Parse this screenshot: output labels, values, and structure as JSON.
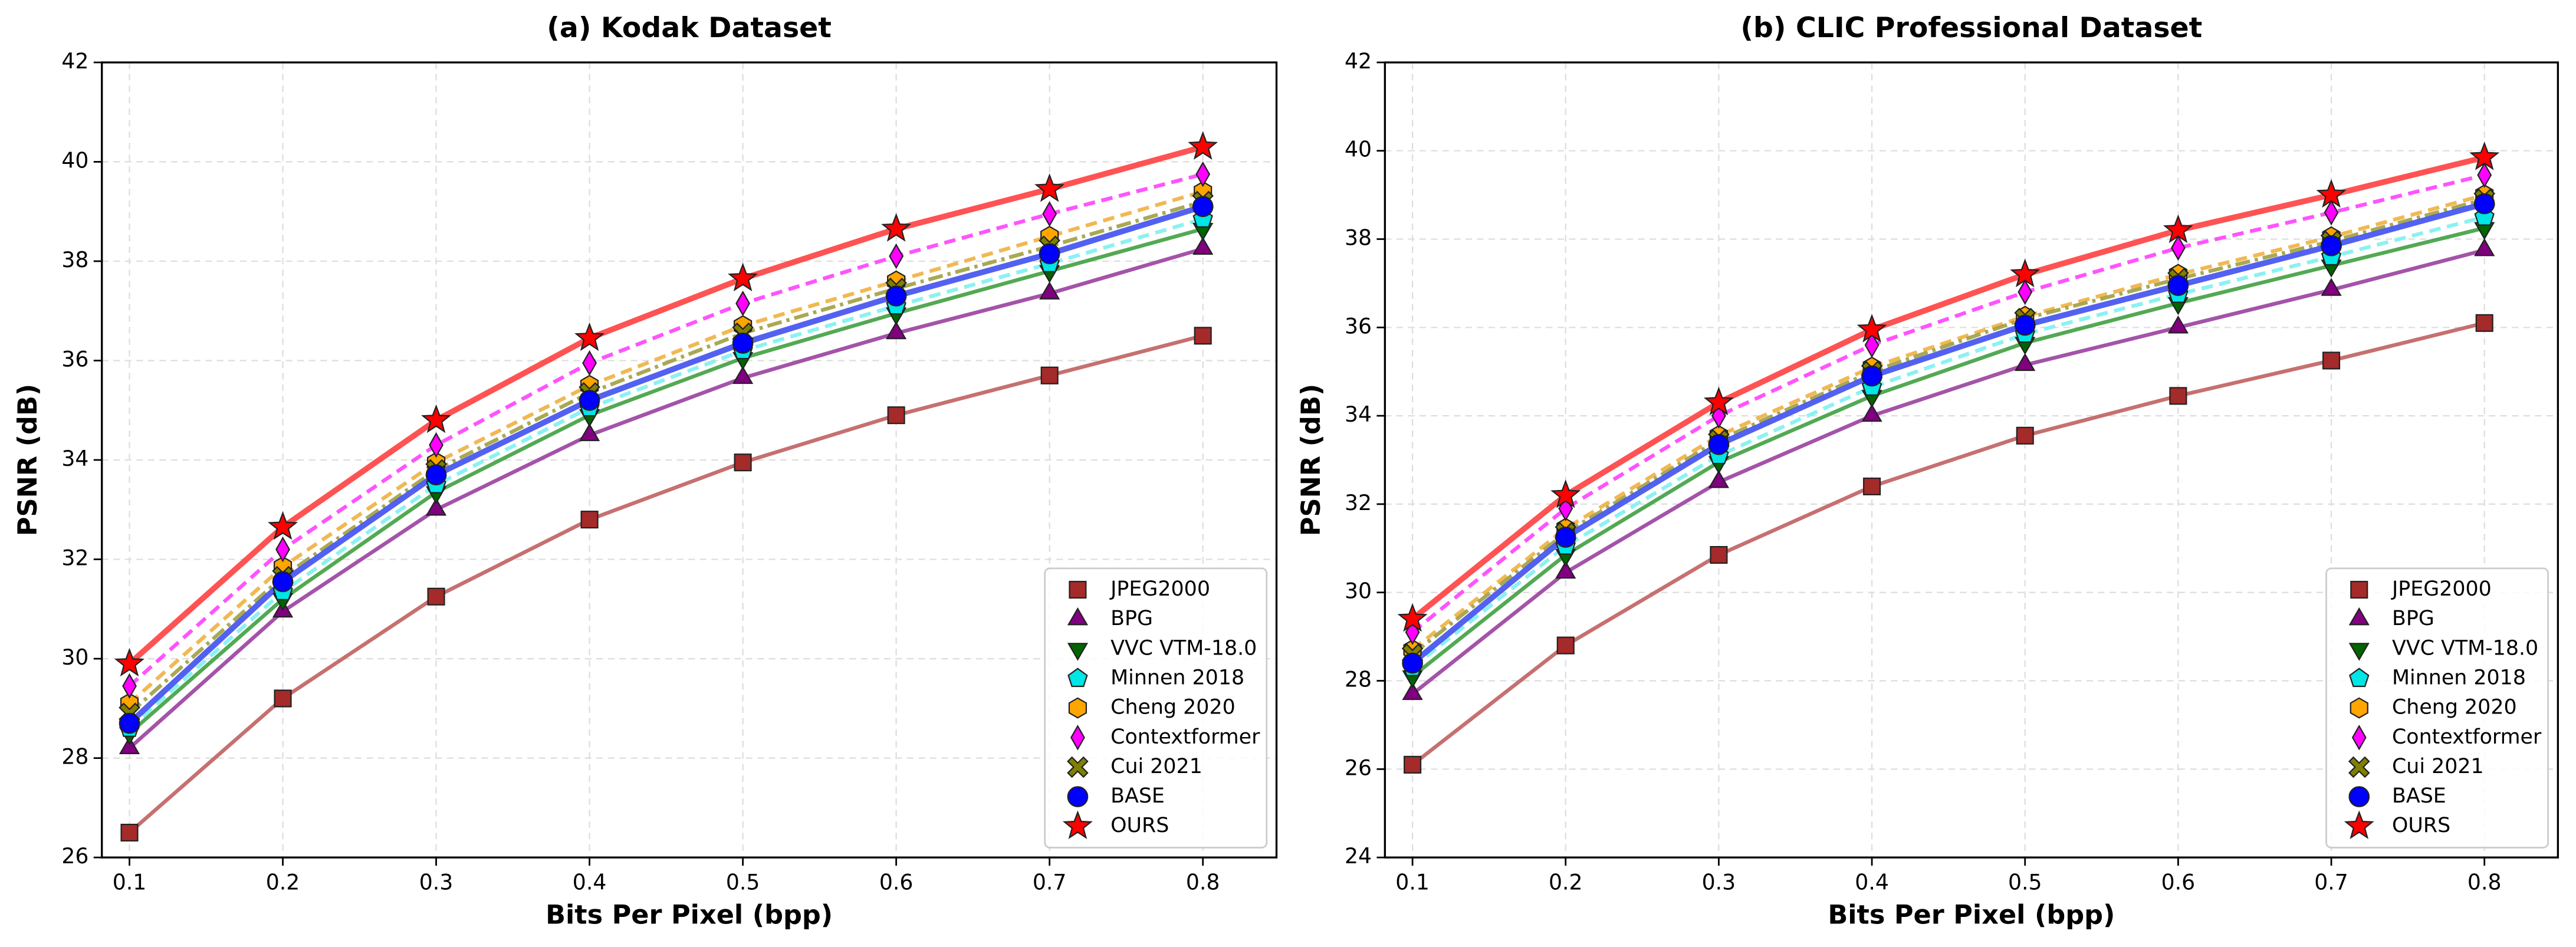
{
  "chart_data": [
    {
      "type": "line",
      "title": "(a) Kodak Dataset",
      "xlabel": "Bits Per Pixel (bpp)",
      "ylabel": "PSNR (dB)",
      "x": [
        0.1,
        0.2,
        0.3,
        0.4,
        0.5,
        0.6,
        0.7,
        0.8
      ],
      "xlim": [
        0.082,
        0.848
      ],
      "xticks": [
        0.1,
        0.2,
        0.3,
        0.4,
        0.5,
        0.6,
        0.7,
        0.8
      ],
      "ylim": [
        26,
        42
      ],
      "yticks": [
        26,
        28,
        30,
        32,
        34,
        36,
        38,
        40,
        42
      ],
      "grid": true,
      "legend": "lower right",
      "series": [
        {
          "name": "JPEG2000",
          "color": "#c06060",
          "marker_color": "#a52a2a",
          "marker": "square",
          "linestyle": "solid",
          "values": [
            26.5,
            29.2,
            31.25,
            32.8,
            33.95,
            34.9,
            35.7,
            36.5
          ]
        },
        {
          "name": "BPG",
          "color": "#9a40a0",
          "marker_color": "#800080",
          "marker": "triangle-up",
          "linestyle": "solid",
          "values": [
            28.2,
            30.95,
            33.0,
            34.5,
            35.65,
            36.55,
            37.35,
            38.25
          ]
        },
        {
          "name": "VVC VTM-18.0",
          "color": "#40a040",
          "marker_color": "#006400",
          "marker": "triangle-down",
          "linestyle": "solid",
          "values": [
            28.5,
            31.2,
            33.35,
            34.9,
            36.05,
            36.95,
            37.8,
            38.65
          ]
        },
        {
          "name": "Minnen 2018",
          "color": "#80f0f0",
          "marker_color": "#00e5e5",
          "marker": "pentagon",
          "linestyle": "dashed",
          "values": [
            28.6,
            31.35,
            33.5,
            35.05,
            36.2,
            37.1,
            37.95,
            38.85
          ]
        },
        {
          "name": "Cheng 2020",
          "color": "#f0b040",
          "marker_color": "#ffa500",
          "marker": "hexagon",
          "linestyle": "dashed",
          "values": [
            29.1,
            31.85,
            33.95,
            35.5,
            36.7,
            37.6,
            38.5,
            39.4
          ]
        },
        {
          "name": "Contextformer",
          "color": "#ff40ff",
          "marker_color": "#ff00ff",
          "marker": "diamond",
          "linestyle": "dashed",
          "values": [
            29.45,
            32.2,
            34.3,
            35.95,
            37.15,
            38.1,
            38.95,
            39.75
          ]
        },
        {
          "name": "Cui 2021",
          "color": "#a0a040",
          "marker_color": "#808000",
          "marker": "x",
          "linestyle": "dashdot",
          "values": [
            28.9,
            31.65,
            33.8,
            35.35,
            36.55,
            37.45,
            38.3,
            39.2
          ]
        },
        {
          "name": "BASE",
          "color": "#4050f0",
          "marker_color": "#0000ff",
          "marker": "circle",
          "linestyle": "solid",
          "values": [
            28.7,
            31.55,
            33.7,
            35.2,
            36.35,
            37.3,
            38.15,
            39.1
          ]
        },
        {
          "name": "OURS",
          "color": "#ff4040",
          "marker_color": "#ff0000",
          "marker": "star",
          "linestyle": "solid",
          "values": [
            29.9,
            32.65,
            34.8,
            36.45,
            37.65,
            38.65,
            39.45,
            40.3
          ]
        }
      ]
    },
    {
      "type": "line",
      "title": "(b) CLIC Professional Dataset",
      "xlabel": "Bits Per Pixel (bpp)",
      "ylabel": "PSNR (dB)",
      "x": [
        0.1,
        0.2,
        0.3,
        0.4,
        0.5,
        0.6,
        0.7,
        0.8
      ],
      "xlim": [
        0.082,
        0.848
      ],
      "xticks": [
        0.1,
        0.2,
        0.3,
        0.4,
        0.5,
        0.6,
        0.7,
        0.8
      ],
      "ylim": [
        24,
        42
      ],
      "yticks": [
        24,
        26,
        28,
        30,
        32,
        34,
        36,
        38,
        40,
        42
      ],
      "grid": true,
      "legend": "lower right",
      "series": [
        {
          "name": "JPEG2000",
          "color": "#c06060",
          "marker_color": "#a52a2a",
          "marker": "square",
          "linestyle": "solid",
          "values": [
            26.1,
            28.8,
            30.85,
            32.4,
            33.55,
            34.45,
            35.25,
            36.1
          ]
        },
        {
          "name": "BPG",
          "color": "#9a40a0",
          "marker_color": "#800080",
          "marker": "triangle-up",
          "linestyle": "solid",
          "values": [
            27.7,
            30.45,
            32.5,
            34.0,
            35.15,
            36.0,
            36.85,
            37.75
          ]
        },
        {
          "name": "VVC VTM-18.0",
          "color": "#40a040",
          "marker_color": "#006400",
          "marker": "triangle-down",
          "linestyle": "solid",
          "values": [
            28.1,
            30.85,
            32.95,
            34.45,
            35.65,
            36.55,
            37.4,
            38.25
          ]
        },
        {
          "name": "Minnen 2018",
          "color": "#80f0f0",
          "marker_color": "#00e5e5",
          "marker": "pentagon",
          "linestyle": "dashed",
          "values": [
            28.3,
            31.05,
            33.1,
            34.65,
            35.85,
            36.75,
            37.6,
            38.5
          ]
        },
        {
          "name": "Cheng 2020",
          "color": "#f0b040",
          "marker_color": "#ffa500",
          "marker": "hexagon",
          "linestyle": "dashed",
          "values": [
            28.7,
            31.45,
            33.55,
            35.1,
            36.25,
            37.2,
            38.05,
            39.0
          ]
        },
        {
          "name": "Contextformer",
          "color": "#ff40ff",
          "marker_color": "#ff00ff",
          "marker": "diamond",
          "linestyle": "dashed",
          "values": [
            29.1,
            31.9,
            34.0,
            35.6,
            36.8,
            37.8,
            38.6,
            39.45
          ]
        },
        {
          "name": "Cui 2021",
          "color": "#a0a040",
          "marker_color": "#808000",
          "marker": "x",
          "linestyle": "dashdot",
          "values": [
            28.6,
            31.35,
            33.45,
            35.0,
            36.2,
            37.1,
            37.95,
            38.9
          ]
        },
        {
          "name": "BASE",
          "color": "#4050f0",
          "marker_color": "#0000ff",
          "marker": "circle",
          "linestyle": "solid",
          "values": [
            28.4,
            31.25,
            33.35,
            34.9,
            36.05,
            36.95,
            37.85,
            38.8
          ]
        },
        {
          "name": "OURS",
          "color": "#ff4040",
          "marker_color": "#ff0000",
          "marker": "star",
          "linestyle": "solid",
          "values": [
            29.4,
            32.2,
            34.3,
            35.95,
            37.2,
            38.2,
            39.0,
            39.85
          ]
        }
      ]
    }
  ]
}
